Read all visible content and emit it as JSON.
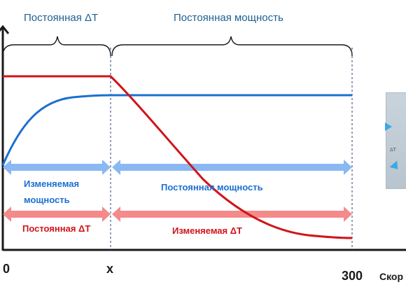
{
  "regions": {
    "constant_dt": "Постоянная ΔT",
    "constant_power": "Постоянная мощность"
  },
  "arrows": {
    "blue_left_line1": "Изменяемая",
    "blue_left_line2": "мощность",
    "blue_right": "Постоянная мощность",
    "red_left": "Постоянная ΔT",
    "red_right": "Изменяемая ΔT"
  },
  "axis": {
    "origin": "0",
    "x_mark": "x",
    "end_mark": "300",
    "speed_label": "Скор"
  },
  "side_image": {
    "label": "ΔT"
  },
  "colors": {
    "blue_line": "#1a6fd1",
    "red_line": "#d0141a",
    "blue_arrow": "#8ab8f3",
    "red_arrow": "#f48a8a",
    "blue_text": "#1a6fd1",
    "red_text": "#d0141a",
    "region_text": "#1f5f8f",
    "axis": "#1a1a1a"
  }
}
